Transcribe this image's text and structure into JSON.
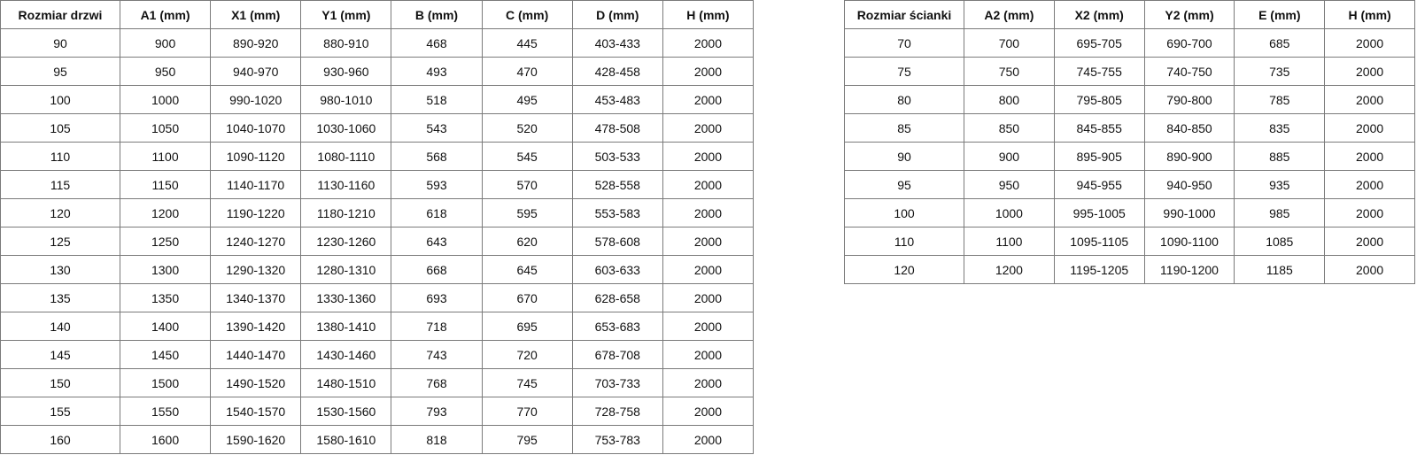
{
  "doors_table": {
    "headers": [
      "Rozmiar drzwi",
      "A1 (mm)",
      "X1 (mm)",
      "Y1 (mm)",
      "B (mm)",
      "C (mm)",
      "D (mm)",
      "H (mm)"
    ],
    "rows": [
      [
        "90",
        "900",
        "890-920",
        "880-910",
        "468",
        "445",
        "403-433",
        "2000"
      ],
      [
        "95",
        "950",
        "940-970",
        "930-960",
        "493",
        "470",
        "428-458",
        "2000"
      ],
      [
        "100",
        "1000",
        "990-1020",
        "980-1010",
        "518",
        "495",
        "453-483",
        "2000"
      ],
      [
        "105",
        "1050",
        "1040-1070",
        "1030-1060",
        "543",
        "520",
        "478-508",
        "2000"
      ],
      [
        "110",
        "1100",
        "1090-1120",
        "1080-1110",
        "568",
        "545",
        "503-533",
        "2000"
      ],
      [
        "115",
        "1150",
        "1140-1170",
        "1130-1160",
        "593",
        "570",
        "528-558",
        "2000"
      ],
      [
        "120",
        "1200",
        "1190-1220",
        "1180-1210",
        "618",
        "595",
        "553-583",
        "2000"
      ],
      [
        "125",
        "1250",
        "1240-1270",
        "1230-1260",
        "643",
        "620",
        "578-608",
        "2000"
      ],
      [
        "130",
        "1300",
        "1290-1320",
        "1280-1310",
        "668",
        "645",
        "603-633",
        "2000"
      ],
      [
        "135",
        "1350",
        "1340-1370",
        "1330-1360",
        "693",
        "670",
        "628-658",
        "2000"
      ],
      [
        "140",
        "1400",
        "1390-1420",
        "1380-1410",
        "718",
        "695",
        "653-683",
        "2000"
      ],
      [
        "145",
        "1450",
        "1440-1470",
        "1430-1460",
        "743",
        "720",
        "678-708",
        "2000"
      ],
      [
        "150",
        "1500",
        "1490-1520",
        "1480-1510",
        "768",
        "745",
        "703-733",
        "2000"
      ],
      [
        "155",
        "1550",
        "1540-1570",
        "1530-1560",
        "793",
        "770",
        "728-758",
        "2000"
      ],
      [
        "160",
        "1600",
        "1590-1620",
        "1580-1610",
        "818",
        "795",
        "753-783",
        "2000"
      ]
    ]
  },
  "walls_table": {
    "headers": [
      "Rozmiar ścianki",
      "A2 (mm)",
      "X2 (mm)",
      "Y2 (mm)",
      "E (mm)",
      "H (mm)"
    ],
    "rows": [
      [
        "70",
        "700",
        "695-705",
        "690-700",
        "685",
        "2000"
      ],
      [
        "75",
        "750",
        "745-755",
        "740-750",
        "735",
        "2000"
      ],
      [
        "80",
        "800",
        "795-805",
        "790-800",
        "785",
        "2000"
      ],
      [
        "85",
        "850",
        "845-855",
        "840-850",
        "835",
        "2000"
      ],
      [
        "90",
        "900",
        "895-905",
        "890-900",
        "885",
        "2000"
      ],
      [
        "95",
        "950",
        "945-955",
        "940-950",
        "935",
        "2000"
      ],
      [
        "100",
        "1000",
        "995-1005",
        "990-1000",
        "985",
        "2000"
      ],
      [
        "110",
        "1100",
        "1095-1105",
        "1090-1100",
        "1085",
        "2000"
      ],
      [
        "120",
        "1200",
        "1195-1205",
        "1190-1200",
        "1185",
        "2000"
      ]
    ]
  }
}
